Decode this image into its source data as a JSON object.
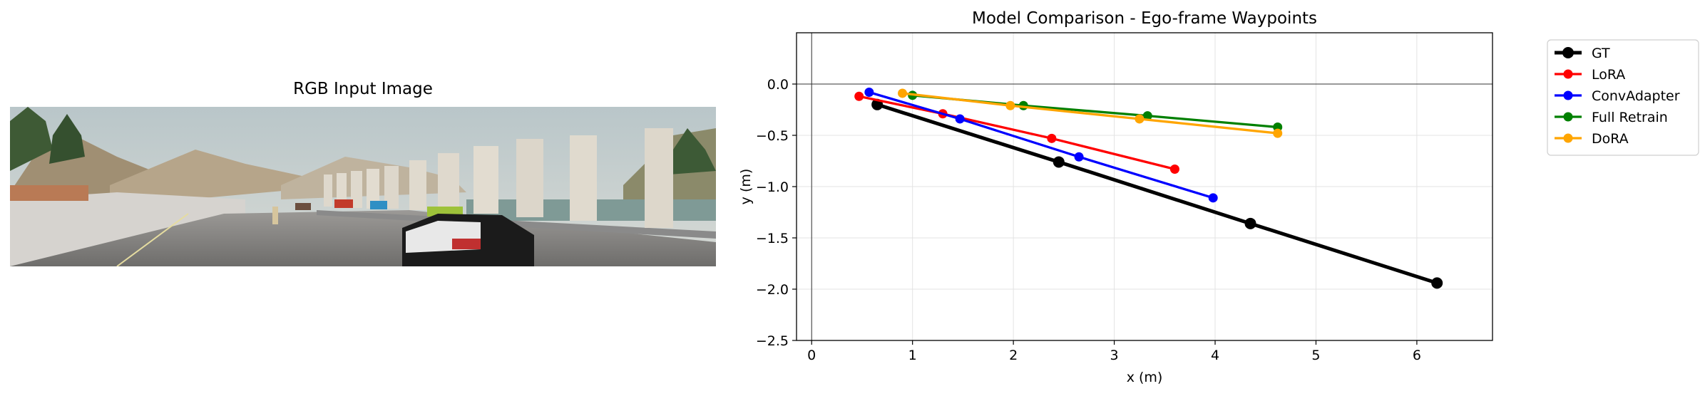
{
  "left_panel": {
    "title": "RGB Input Image",
    "image_semantic": "driving-scene-panorama"
  },
  "chart_data": {
    "type": "line",
    "title": "Model Comparison - Ego-frame Waypoints",
    "xlabel": "x (m)",
    "ylabel": "y (m)",
    "xlim": [
      -0.15,
      6.75
    ],
    "ylim": [
      -2.5,
      0.5
    ],
    "xticks": [
      0,
      1,
      2,
      3,
      4,
      5,
      6
    ],
    "xtick_labels": [
      "0",
      "1",
      "2",
      "3",
      "4",
      "5",
      "6"
    ],
    "yticks": [
      0.0,
      -0.5,
      -1.0,
      -1.5,
      -2.0,
      -2.5
    ],
    "ytick_labels": [
      "0.0",
      "−0.5",
      "−1.0",
      "−1.5",
      "−2.0",
      "−2.5"
    ],
    "grid": true,
    "legend_position": "outside-right",
    "reference_lines": {
      "horizontal_y": 0,
      "vertical_x": 0
    },
    "series": [
      {
        "name": "GT",
        "color": "#000000",
        "thick": true,
        "x": [
          0.65,
          2.45,
          4.35,
          6.2
        ],
        "y": [
          -0.2,
          -0.76,
          -1.36,
          -1.94
        ]
      },
      {
        "name": "LoRA",
        "color": "#ff0000",
        "x": [
          0.47,
          1.3,
          2.38,
          3.6
        ],
        "y": [
          -0.12,
          -0.29,
          -0.53,
          -0.83
        ]
      },
      {
        "name": "ConvAdapter",
        "color": "#0000ff",
        "x": [
          0.57,
          1.47,
          2.65,
          3.98
        ],
        "y": [
          -0.08,
          -0.34,
          -0.71,
          -1.11
        ]
      },
      {
        "name": "Full Retrain",
        "color": "#008000",
        "x": [
          1.0,
          2.1,
          3.33,
          4.62
        ],
        "y": [
          -0.11,
          -0.21,
          -0.31,
          -0.42
        ]
      },
      {
        "name": "DoRA",
        "color": "#ffa500",
        "x": [
          0.9,
          1.97,
          3.25,
          4.62
        ],
        "y": [
          -0.09,
          -0.21,
          -0.34,
          -0.48
        ]
      }
    ]
  }
}
